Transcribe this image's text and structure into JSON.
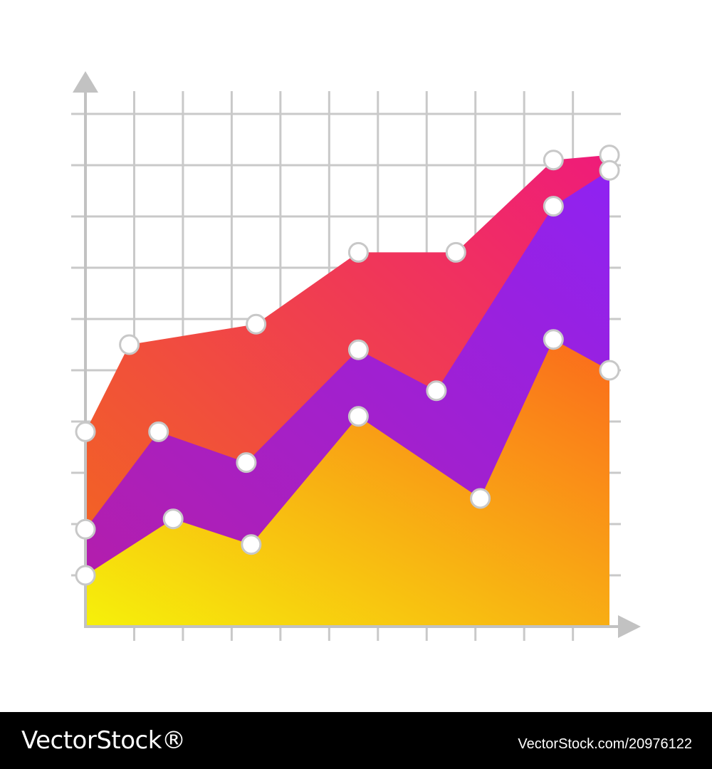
{
  "chart_data": {
    "type": "area",
    "stacked": false,
    "title": "",
    "xlabel": "",
    "ylabel": "",
    "x": [
      0,
      1,
      2,
      3,
      4,
      5,
      6,
      7,
      8,
      9,
      10
    ],
    "xlim": [
      0,
      10.75
    ],
    "ylim": [
      0,
      10
    ],
    "grid": true,
    "axis_arrows": true,
    "legend": "none",
    "series": [
      {
        "color_start": "#f26a1b",
        "color_end": "#ef1b7a",
        "points": [
          [
            0,
            3.8
          ],
          [
            0.9,
            5.5
          ],
          [
            3.5,
            5.9
          ],
          [
            5.6,
            7.3
          ],
          [
            7.6,
            7.3
          ],
          [
            9.6,
            9.1
          ],
          [
            10.75,
            9.2
          ]
        ]
      },
      {
        "color_start": "#b51ea8",
        "color_end": "#8f22f2",
        "points": [
          [
            0,
            1.9
          ],
          [
            1.5,
            3.8
          ],
          [
            3.3,
            3.2
          ],
          [
            5.6,
            5.4
          ],
          [
            7.2,
            4.6
          ],
          [
            9.6,
            8.2
          ],
          [
            10.75,
            8.9
          ]
        ]
      },
      {
        "color_start": "#f6f10a",
        "color_end": "#fb6a1c",
        "points": [
          [
            0,
            1.0
          ],
          [
            1.8,
            2.1
          ],
          [
            3.4,
            1.6
          ],
          [
            5.6,
            4.1
          ],
          [
            8.1,
            2.5
          ],
          [
            9.6,
            5.6
          ],
          [
            10.75,
            5.0
          ]
        ]
      }
    ]
  },
  "colors": {
    "grid": "#c9c9c9",
    "axis": "#c2c2c2",
    "marker_fill": "#ffffff",
    "marker_stroke": "#c8c8c8",
    "footer_bg": "#000000"
  },
  "footer": {
    "brand": "VectorStock®",
    "image_id": "VectorStock.com/20976122"
  }
}
